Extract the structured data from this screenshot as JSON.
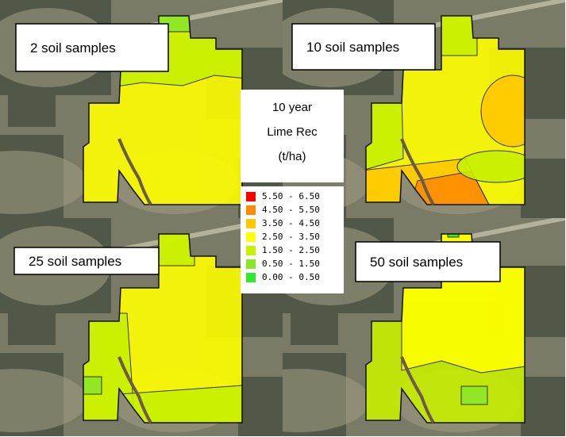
{
  "panels": [
    {
      "label": "2 soil samples"
    },
    {
      "label": "10 soil samples"
    },
    {
      "label": "25 soil samples"
    },
    {
      "label": "50 soil samples"
    }
  ],
  "legend": {
    "title": [
      "10 year",
      "Lime Rec",
      "(t/ha)"
    ],
    "items": [
      {
        "label": "5.50 - 6.50",
        "color": "#ff0000"
      },
      {
        "label": "4.50 - 5.50",
        "color": "#ff8c00"
      },
      {
        "label": "3.50 - 4.50",
        "color": "#ffc800"
      },
      {
        "label": "2.50 - 3.50",
        "color": "#ffff00"
      },
      {
        "label": "1.50 - 2.50",
        "color": "#c8f000"
      },
      {
        "label": "0.50 - 1.50",
        "color": "#8ce628"
      },
      {
        "label": "0.00 - 0.50",
        "color": "#32e632"
      }
    ]
  }
}
